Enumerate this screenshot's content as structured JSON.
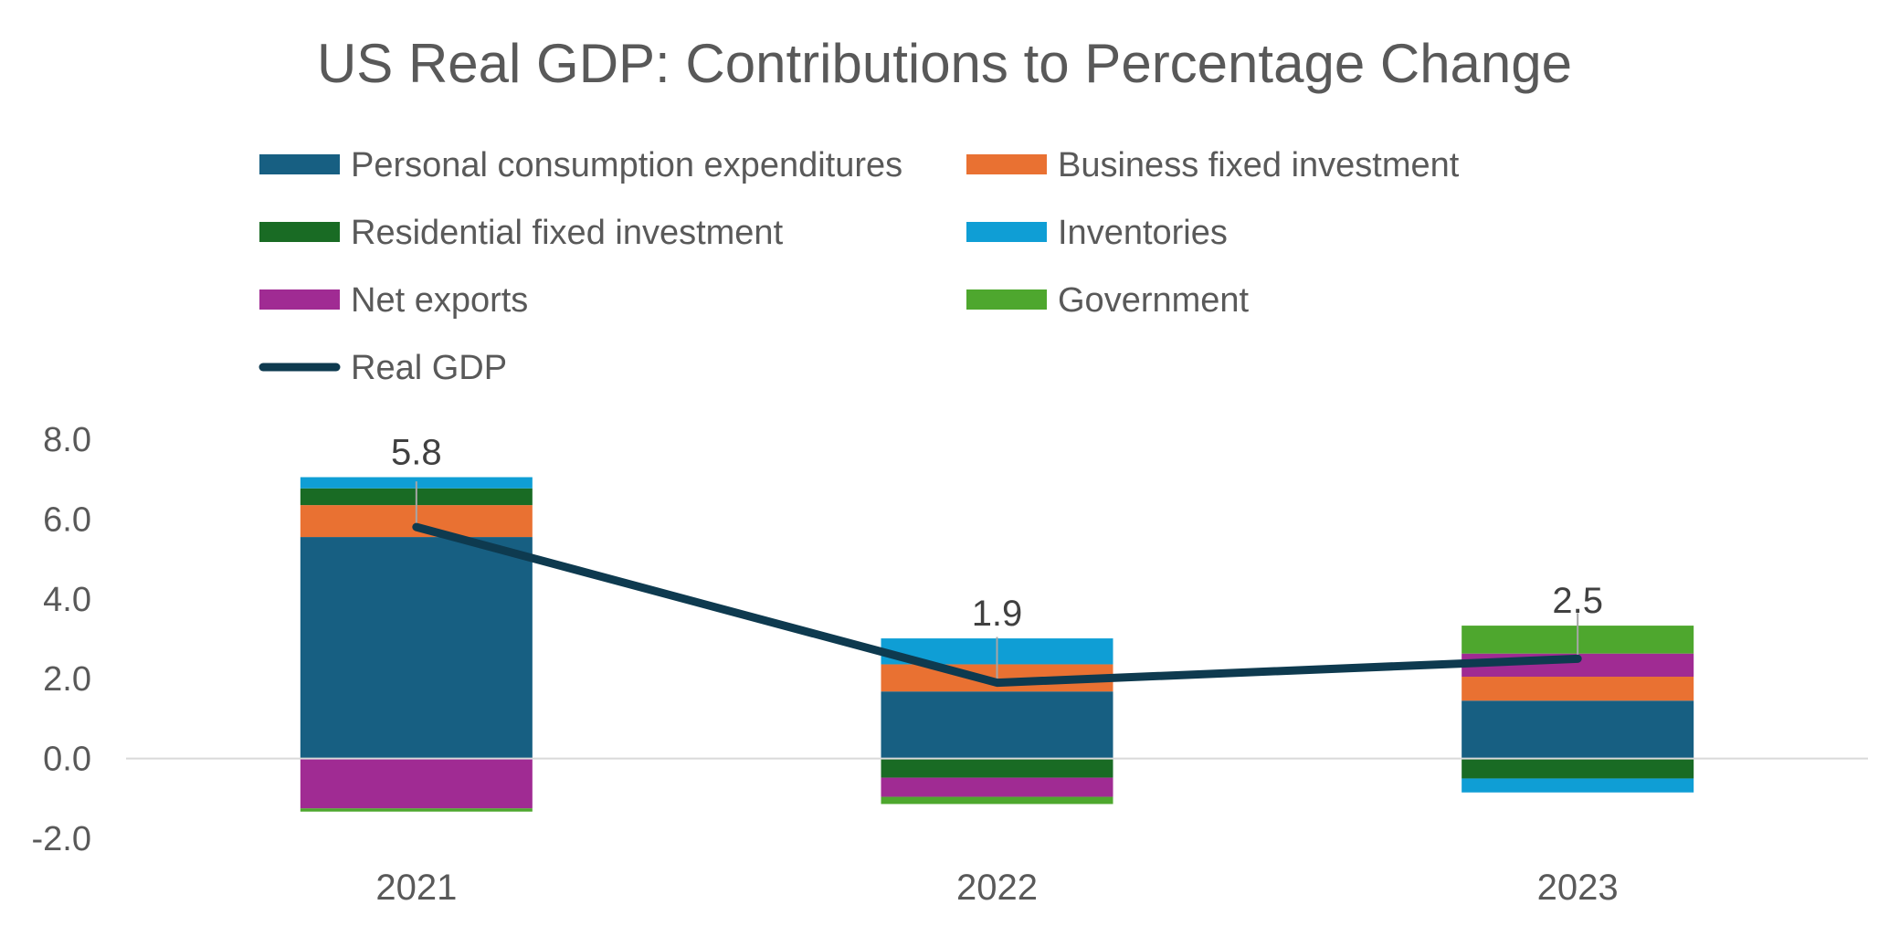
{
  "chart_data": {
    "type": "bar",
    "stacked": true,
    "title": "US Real GDP: Contributions to Percentage Change",
    "xlabel": "",
    "ylabel": "",
    "categories": [
      "2021",
      "2022",
      "2023"
    ],
    "ylim": [
      -2.0,
      8.0
    ],
    "yticks": [
      "8.0",
      "6.0",
      "4.0",
      "2.0",
      "0.0",
      "-2.0"
    ],
    "grid": false,
    "legend_position": "top",
    "series": [
      {
        "name": "Personal consumption expenditures",
        "color": "#175F82",
        "values": [
          5.55,
          1.68,
          1.45
        ]
      },
      {
        "name": "Business fixed investment",
        "color": "#E97132",
        "values": [
          0.8,
          0.68,
          0.6
        ]
      },
      {
        "name": "Residential fixed investment",
        "color": "#196B24",
        "values": [
          0.42,
          -0.48,
          -0.5
        ]
      },
      {
        "name": "Inventories",
        "color": "#0F9ED5",
        "values": [
          0.28,
          0.65,
          -0.35
        ]
      },
      {
        "name": "Net exports",
        "color": "#A02B93",
        "values": [
          -1.25,
          -0.48,
          0.58
        ]
      },
      {
        "name": "Government",
        "color": "#4EA72E",
        "values": [
          -0.08,
          -0.18,
          0.7
        ]
      }
    ],
    "line": {
      "name": "Real GDP",
      "color": "#0E3A4F",
      "values": [
        5.8,
        1.9,
        2.5
      ],
      "labels": [
        "5.8",
        "1.9",
        "2.5"
      ]
    }
  }
}
